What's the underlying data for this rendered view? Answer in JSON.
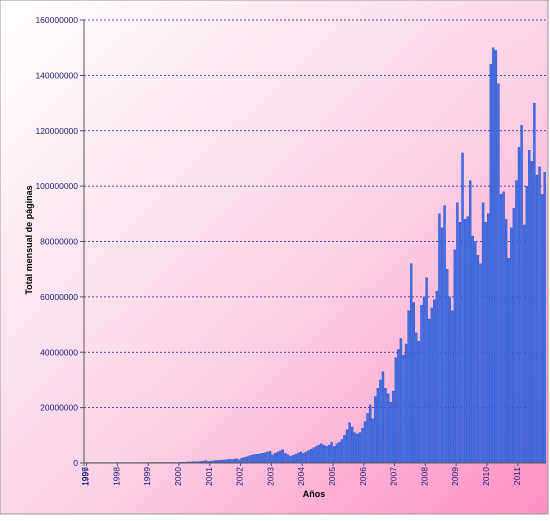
{
  "chart_data": {
    "type": "bar",
    "title": "",
    "xlabel": "Años",
    "ylabel": "Total mensual de páginas",
    "ylim": [
      0,
      160000000
    ],
    "grid": "horizontal-dashed",
    "legend": "none",
    "x_start": "1996-12",
    "x_tick_labels": [
      "1996",
      "1997",
      "1998",
      "1999",
      "2000",
      "2001",
      "2002",
      "2003",
      "2004",
      "2005",
      "2006",
      "2007",
      "2008",
      "2009",
      "2010",
      "2011"
    ],
    "y_tick_labels": [
      "0",
      "20000000",
      "40000000",
      "60000000",
      "80000000",
      "100000000",
      "120000000",
      "140000000",
      "160000000"
    ],
    "values": [
      100000,
      100000,
      100000,
      100000,
      100000,
      100000,
      100000,
      100000,
      100000,
      100000,
      100000,
      100000,
      100000,
      150000,
      150000,
      150000,
      150000,
      150000,
      150000,
      150000,
      150000,
      150000,
      150000,
      150000,
      150000,
      200000,
      200000,
      200000,
      200000,
      200000,
      200000,
      200000,
      200000,
      200000,
      200000,
      200000,
      200000,
      300000,
      300000,
      300000,
      400000,
      400000,
      500000,
      500000,
      500000,
      600000,
      700000,
      900000,
      600000,
      700000,
      800000,
      900000,
      1000000,
      1000000,
      1100000,
      1200000,
      1300000,
      1300000,
      1400000,
      1500000,
      1200000,
      1800000,
      2000000,
      2300000,
      2600000,
      2900000,
      3100000,
      3200000,
      3300000,
      3500000,
      3700000,
      4000000,
      4200000,
      3000000,
      3500000,
      4000000,
      4400000,
      4800000,
      3500000,
      3000000,
      2500000,
      2800000,
      3200000,
      3600000,
      4000000,
      3500000,
      4000000,
      4500000,
      5000000,
      5500000,
      6000000,
      6500000,
      7000000,
      6500000,
      6000000,
      6500000,
      7500000,
      6000000,
      7000000,
      7500000,
      8500000,
      10000000,
      12000000,
      14500000,
      13000000,
      11000000,
      10500000,
      11000000,
      12500000,
      15000000,
      18000000,
      21000000,
      16000000,
      24000000,
      27000000,
      30000000,
      33000000,
      27000000,
      25000000,
      22000000,
      26000000,
      38000000,
      41000000,
      45000000,
      39000000,
      43000000,
      55000000,
      72000000,
      58000000,
      47000000,
      44000000,
      57000000,
      60000000,
      67000000,
      52000000,
      56000000,
      59000000,
      62000000,
      90000000,
      85000000,
      93000000,
      70000000,
      60000000,
      55000000,
      77000000,
      94000000,
      87000000,
      112000000,
      88000000,
      89000000,
      102000000,
      82000000,
      80000000,
      75000000,
      72000000,
      94000000,
      87000000,
      90000000,
      144000000,
      150000000,
      149000000,
      137000000,
      97000000,
      98000000,
      88000000,
      74000000,
      85000000,
      92000000,
      102000000,
      114000000,
      122000000,
      86000000,
      100000000,
      113000000,
      109000000,
      130000000,
      104000000,
      107000000,
      97000000,
      105000000
    ]
  }
}
